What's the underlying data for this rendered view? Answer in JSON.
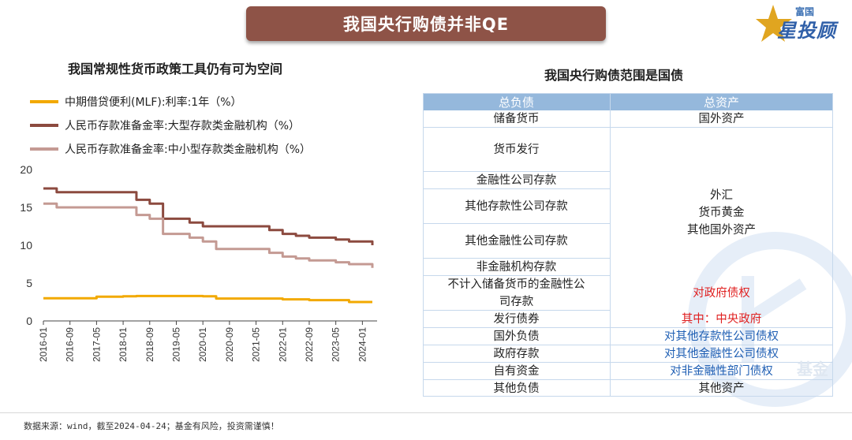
{
  "banner": {
    "title": "我国央行购债并非QE"
  },
  "logo": {
    "top_text": "富国",
    "main_text": "星投顾"
  },
  "left_panel": {
    "title": "我国常规性货币政策工具仍有可为空间"
  },
  "colors": {
    "banner": "#8e5347",
    "mlf": "#f2a900",
    "large_rrr": "#8c4a3f",
    "small_rrr": "#c49a93",
    "table_header": "#95b8dc",
    "red_text": "#e02020",
    "blue_text": "#1f5fb4"
  },
  "chart_data": {
    "type": "line",
    "x": [
      "2016-01",
      "2016-05",
      "2016-09",
      "2017-01",
      "2017-05",
      "2017-09",
      "2018-01",
      "2018-05",
      "2018-09",
      "2019-01",
      "2019-05",
      "2019-09",
      "2020-01",
      "2020-05",
      "2020-09",
      "2021-01",
      "2021-05",
      "2021-09",
      "2022-01",
      "2022-05",
      "2022-09",
      "2023-01",
      "2023-05",
      "2023-09",
      "2024-01",
      "2024-04"
    ],
    "x_ticks": [
      "2016-01",
      "2016-09",
      "2017-05",
      "2018-01",
      "2018-09",
      "2019-05",
      "2020-01",
      "2020-09",
      "2021-05",
      "2022-01",
      "2022-09",
      "2023-05",
      "2024-01"
    ],
    "ylim": [
      0,
      20
    ],
    "y_ticks": [
      0,
      5,
      10,
      15,
      20
    ],
    "grid": false,
    "legend_position": "top-left",
    "series": [
      {
        "name": "中期借贷便利(MLF):利率:1年（%）",
        "color": "#f2a900",
        "values": [
          3.0,
          3.0,
          3.0,
          3.0,
          3.2,
          3.2,
          3.25,
          3.3,
          3.3,
          3.3,
          3.3,
          3.3,
          3.25,
          2.95,
          2.95,
          2.95,
          2.95,
          2.95,
          2.85,
          2.85,
          2.75,
          2.75,
          2.75,
          2.5,
          2.5,
          2.5
        ]
      },
      {
        "name": "人民币存款准备金率:大型存款类金融机构（%）",
        "color": "#8c4a3f",
        "values": [
          17.5,
          17.0,
          17.0,
          17.0,
          17.0,
          17.0,
          17.0,
          16.0,
          15.5,
          13.5,
          13.5,
          13.0,
          12.5,
          12.5,
          12.5,
          12.5,
          12.5,
          12.0,
          11.5,
          11.25,
          11.0,
          11.0,
          10.75,
          10.5,
          10.5,
          10.0
        ]
      },
      {
        "name": "人民币存款准备金率:中小型存款类金融机构（%）",
        "color": "#c49a93",
        "values": [
          15.5,
          15.0,
          15.0,
          15.0,
          15.0,
          15.0,
          15.0,
          14.0,
          13.5,
          11.5,
          11.5,
          11.0,
          10.5,
          9.5,
          9.5,
          9.5,
          9.5,
          9.0,
          8.5,
          8.25,
          8.0,
          8.0,
          7.75,
          7.5,
          7.5,
          7.0
        ]
      }
    ]
  },
  "right_panel": {
    "title": "我国央行购债范围是国债",
    "table": {
      "headers": [
        "总负债",
        "总资产"
      ],
      "liabilities": [
        "储备货币",
        "货币发行",
        "金融性公司存款",
        "其他存款性公司存款",
        "其他金融性公司存款",
        "非金融机构存款",
        "不计入储备货币的金融性公司存款",
        "发行债券",
        "国外负债",
        "政府存款",
        "自有资金",
        "其他负债"
      ],
      "assets_top": "国外资产",
      "assets_group": [
        "外汇",
        "货币黄金",
        "其他国外资产"
      ],
      "assets_gov": "对政府债权",
      "assets_gov_sub": "其中：中央政府",
      "assets_blue": [
        "对其他存款性公司债权",
        "对其他金融性公司债权",
        "对非金融性部门债权"
      ],
      "assets_other": "其他资产"
    }
  },
  "watermark": {
    "text": "基金"
  },
  "footer": {
    "source": "数据来源：wind，截至2024-04-24；基金有风险，投资需谨慎！"
  }
}
